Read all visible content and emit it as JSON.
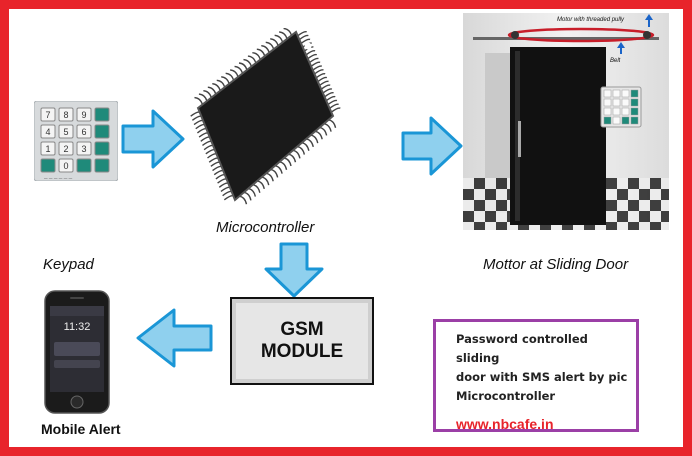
{
  "labels": {
    "microcontroller": "Microcontroller",
    "keypad": "Keypad",
    "motor": "Mottor at Sliding Door",
    "mobile": "Mobile Alert"
  },
  "gsm": {
    "line1": "GSM",
    "line2": "MODULE"
  },
  "door": {
    "motor_note": "Motor with threaded pully",
    "belt_note": "Belt"
  },
  "info": {
    "line1": "Password controlled sliding",
    "line2": "door with SMS alert by pic",
    "line3": "Microcontroller",
    "url": "www.nbcafe.in"
  },
  "phone": {
    "time": "11:32"
  },
  "keypad_keys": [
    "7",
    "8",
    "9",
    "",
    "4",
    "5",
    "6",
    "",
    "1",
    "2",
    "3",
    "",
    "",
    "0",
    "",
    ""
  ],
  "colors": {
    "border": "#e8242b",
    "arrow": "#8fd0ee",
    "arrow_stroke": "#1a96d6",
    "info_border": "#9b3fa6",
    "url": "#e8242b"
  }
}
